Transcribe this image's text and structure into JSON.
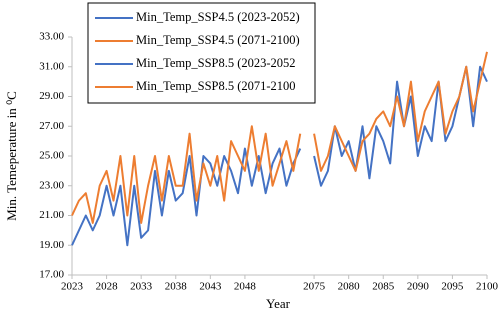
{
  "chart_data": {
    "type": "line",
    "x_label": "Year",
    "y_label": "Min. Temeperature in ⁰C",
    "categories": [
      "2023",
      null,
      null,
      null,
      null,
      "2028",
      null,
      null,
      null,
      null,
      "2033",
      null,
      null,
      null,
      null,
      "2038",
      null,
      null,
      null,
      null,
      "2043",
      null,
      null,
      null,
      null,
      "2048",
      null,
      null,
      null,
      null,
      null,
      null,
      null,
      null,
      null,
      "2075",
      null,
      null,
      null,
      null,
      "2080",
      null,
      null,
      null,
      null,
      "2085",
      null,
      null,
      null,
      null,
      "2090",
      null,
      null,
      null,
      null,
      "2095",
      null,
      null,
      null,
      null,
      "2100"
    ],
    "series": [
      {
        "name": "Min_Temp_SSP4.5 (2023-2052)",
        "color": "#4472c4",
        "values": [
          19,
          20,
          21,
          20,
          21,
          23,
          21,
          23,
          19,
          23,
          19.5,
          20,
          24,
          21,
          24,
          22,
          22.5,
          25,
          21,
          25,
          24.5,
          23,
          25,
          24,
          22.5,
          25.5,
          23,
          25,
          22.5,
          24.5,
          25.5,
          23,
          24.5,
          25.5,
          null,
          null,
          null,
          null,
          null,
          null,
          null,
          null,
          null,
          null,
          null,
          null,
          null,
          null,
          null,
          null,
          null,
          null,
          null,
          null,
          null,
          null,
          null,
          null,
          null,
          null,
          null
        ]
      },
      {
        "name": "Min_Temp_SSP4.5 (2071-2100)",
        "color": "#ed7d31",
        "values": [
          21,
          22,
          22.5,
          20.5,
          23,
          24,
          22,
          25,
          21,
          25,
          20.5,
          23,
          25,
          22,
          25,
          23,
          23,
          26.5,
          22,
          24.5,
          23,
          25,
          22,
          26,
          25,
          24,
          27,
          24,
          26.5,
          23,
          24.5,
          26,
          24,
          26.5,
          null,
          null,
          null,
          null,
          null,
          null,
          null,
          null,
          null,
          null,
          null,
          null,
          null,
          null,
          null,
          null,
          null,
          null,
          null,
          null,
          null,
          null,
          null,
          null,
          null,
          null,
          null
        ]
      },
      {
        "name": "Min_Temp_SSP8.5 (2023-2052",
        "color": "#4472c4",
        "values": [
          null,
          null,
          null,
          null,
          null,
          null,
          null,
          null,
          null,
          null,
          null,
          null,
          null,
          null,
          null,
          null,
          null,
          null,
          null,
          null,
          null,
          null,
          null,
          null,
          null,
          null,
          null,
          null,
          null,
          null,
          null,
          null,
          null,
          null,
          null,
          25,
          23,
          24,
          27,
          25,
          26,
          24,
          27,
          23.5,
          27,
          26,
          24.5,
          30,
          27,
          29,
          25,
          27,
          26,
          30,
          26,
          27,
          29,
          31,
          27,
          31,
          30
        ]
      },
      {
        "name": "Min_Temp_SSP8.5 (2071-2100",
        "color": "#ed7d31",
        "values": [
          null,
          null,
          null,
          null,
          null,
          null,
          null,
          null,
          null,
          null,
          null,
          null,
          null,
          null,
          null,
          null,
          null,
          null,
          null,
          null,
          null,
          null,
          null,
          null,
          null,
          null,
          null,
          null,
          null,
          null,
          null,
          null,
          null,
          null,
          null,
          26.5,
          24,
          25,
          27,
          26,
          25,
          24,
          26,
          26.5,
          27.5,
          28,
          27,
          29,
          27,
          30,
          26,
          28,
          29,
          30,
          26.5,
          28,
          29,
          31,
          28,
          30,
          32
        ]
      }
    ],
    "ylim": [
      17,
      33
    ],
    "yticks": [
      {
        "value": 17,
        "label": "17.00"
      },
      {
        "value": 19,
        "label": "19.00"
      },
      {
        "value": 21,
        "label": "21.00"
      },
      {
        "value": 23,
        "label": "23.00"
      },
      {
        "value": 25,
        "label": "25.00"
      },
      {
        "value": 27,
        "label": "27.00"
      },
      {
        "value": 29,
        "label": "29.00"
      },
      {
        "value": 31,
        "label": "31.00"
      },
      {
        "value": 33,
        "label": "33.00"
      }
    ],
    "grid": false
  }
}
